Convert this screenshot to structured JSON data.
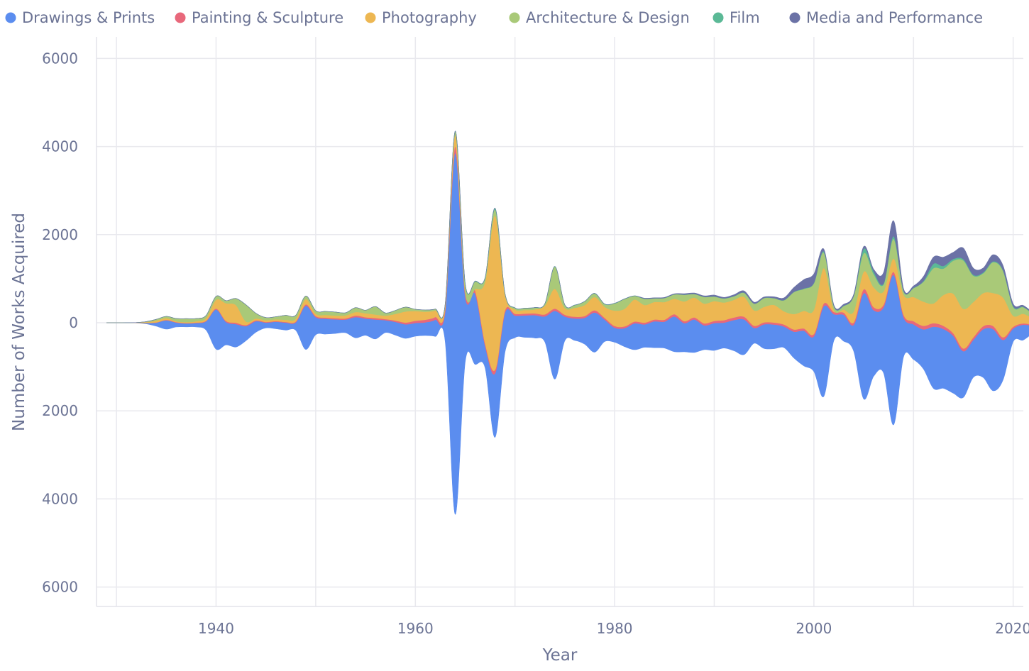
{
  "chart_data": {
    "type": "area",
    "subtype": "streamgraph",
    "xlabel": "Year",
    "ylabel": "Number of Works Acquired",
    "xlim": [
      1928,
      2022
    ],
    "ylim": [
      -6400,
      6400
    ],
    "x_ticks": [
      1940,
      1960,
      1980,
      2000,
      2020
    ],
    "x_tick_labels": [
      "1940",
      "1960",
      "1980",
      "2000",
      "2020"
    ],
    "y_ticks": [
      6000,
      4000,
      2000,
      0,
      -2000,
      -4000,
      -6000
    ],
    "y_tick_labels": [
      "6000",
      "4000",
      "2000",
      "0",
      "2000",
      "4000",
      "6000"
    ],
    "grid": true,
    "legend_position": "top",
    "x": [
      1929,
      1930,
      1931,
      1932,
      1933,
      1934,
      1935,
      1936,
      1937,
      1938,
      1939,
      1940,
      1941,
      1942,
      1943,
      1944,
      1945,
      1946,
      1947,
      1948,
      1949,
      1950,
      1951,
      1952,
      1953,
      1954,
      1955,
      1956,
      1957,
      1958,
      1959,
      1960,
      1961,
      1962,
      1963,
      1964,
      1965,
      1966,
      1967,
      1968,
      1969,
      1970,
      1971,
      1972,
      1973,
      1974,
      1975,
      1976,
      1977,
      1978,
      1979,
      1980,
      1981,
      1982,
      1983,
      1984,
      1985,
      1986,
      1987,
      1988,
      1989,
      1990,
      1991,
      1992,
      1993,
      1994,
      1995,
      1996,
      1997,
      1998,
      1999,
      2000,
      2001,
      2002,
      2003,
      2004,
      2005,
      2006,
      2007,
      2008,
      2009,
      2010,
      2011,
      2012,
      2013,
      2014,
      2015,
      2016,
      2017,
      2018,
      2019,
      2020,
      2021,
      2022
    ],
    "series": [
      {
        "name": "Drawings & Prints",
        "color": "#5b8def",
        "values": [
          0,
          1,
          2,
          5,
          20,
          80,
          200,
          100,
          80,
          90,
          200,
          900,
          520,
          520,
          330,
          250,
          120,
          160,
          170,
          180,
          990,
          400,
          350,
          320,
          300,
          470,
          380,
          440,
          280,
          300,
          320,
          300,
          300,
          380,
          700,
          8200,
          1500,
          1600,
          500,
          1450,
          900,
          500,
          500,
          520,
          580,
          1550,
          550,
          500,
          600,
          900,
          500,
          330,
          420,
          600,
          520,
          600,
          600,
          800,
          650,
          750,
          550,
          620,
          580,
          700,
          800,
          350,
          550,
          550,
          480,
          600,
          800,
          800,
          2050,
          600,
          600,
          600,
          2400,
          1500,
          1500,
          3400,
          900,
          800,
          900,
          1400,
          1350,
          1300,
          1050,
          850,
          1100,
          1400,
          900,
          300,
          350,
          150
        ]
      },
      {
        "name": "Painting & Sculpture",
        "color": "#e8687b",
        "values": [
          0,
          0,
          0,
          0,
          2,
          5,
          10,
          10,
          8,
          10,
          12,
          20,
          25,
          30,
          25,
          20,
          15,
          15,
          15,
          20,
          30,
          25,
          25,
          25,
          25,
          35,
          30,
          35,
          25,
          30,
          40,
          50,
          60,
          60,
          70,
          150,
          80,
          80,
          60,
          80,
          50,
          40,
          40,
          40,
          45,
          50,
          40,
          40,
          40,
          50,
          40,
          40,
          40,
          40,
          40,
          40,
          45,
          50,
          45,
          45,
          45,
          50,
          55,
          60,
          60,
          50,
          45,
          45,
          45,
          50,
          50,
          55,
          60,
          50,
          50,
          55,
          90,
          70,
          60,
          70,
          60,
          70,
          80,
          80,
          70,
          60,
          60,
          60,
          70,
          70,
          60,
          40,
          30,
          20
        ]
      },
      {
        "name": "Photography",
        "color": "#edb752",
        "values": [
          0,
          0,
          0,
          5,
          20,
          40,
          40,
          20,
          20,
          30,
          60,
          200,
          400,
          400,
          80,
          40,
          40,
          40,
          50,
          60,
          120,
          50,
          60,
          60,
          70,
          80,
          90,
          80,
          80,
          150,
          250,
          220,
          180,
          150,
          80,
          260,
          30,
          30,
          1400,
          3500,
          350,
          100,
          80,
          90,
          200,
          450,
          150,
          200,
          250,
          300,
          250,
          350,
          400,
          500,
          400,
          400,
          400,
          350,
          450,
          450,
          450,
          450,
          400,
          400,
          450,
          350,
          350,
          400,
          300,
          350,
          400,
          550,
          800,
          50,
          70,
          250,
          400,
          450,
          300,
          300,
          450,
          550,
          550,
          450,
          700,
          900,
          900,
          800,
          750,
          750,
          900,
          250,
          220,
          150
        ]
      },
      {
        "name": "Architecture & Design",
        "color": "#a9c978",
        "values": [
          0,
          0,
          0,
          0,
          10,
          30,
          40,
          60,
          80,
          60,
          60,
          80,
          60,
          150,
          380,
          120,
          60,
          60,
          100,
          80,
          70,
          70,
          80,
          80,
          60,
          100,
          70,
          180,
          60,
          80,
          100,
          40,
          40,
          30,
          20,
          80,
          170,
          170,
          80,
          140,
          30,
          30,
          40,
          40,
          40,
          500,
          70,
          60,
          80,
          80,
          60,
          160,
          220,
          80,
          140,
          80,
          90,
          100,
          150,
          80,
          150,
          100,
          90,
          80,
          90,
          150,
          200,
          150,
          250,
          500,
          500,
          600,
          350,
          80,
          80,
          350,
          420,
          300,
          160,
          450,
          80,
          200,
          450,
          800,
          600,
          750,
          1100,
          600,
          450,
          700,
          600,
          200,
          150,
          100
        ]
      },
      {
        "name": "Film",
        "color": "#5bb996",
        "values": [
          0,
          0,
          0,
          0,
          0,
          0,
          0,
          0,
          0,
          0,
          0,
          0,
          0,
          0,
          0,
          0,
          0,
          0,
          0,
          0,
          0,
          0,
          0,
          0,
          0,
          0,
          0,
          0,
          0,
          0,
          0,
          0,
          0,
          0,
          0,
          10,
          10,
          10,
          10,
          30,
          5,
          5,
          5,
          5,
          5,
          10,
          5,
          5,
          5,
          5,
          5,
          5,
          5,
          5,
          5,
          5,
          5,
          5,
          5,
          5,
          5,
          5,
          5,
          5,
          5,
          5,
          5,
          5,
          5,
          5,
          10,
          10,
          30,
          10,
          10,
          10,
          100,
          60,
          20,
          60,
          10,
          10,
          20,
          100,
          60,
          40,
          30,
          20,
          20,
          20,
          20,
          20,
          10,
          10
        ]
      },
      {
        "name": "Media and Performance",
        "color": "#6b72a6",
        "values": [
          0,
          0,
          0,
          0,
          0,
          0,
          0,
          0,
          0,
          0,
          0,
          0,
          0,
          0,
          0,
          0,
          0,
          0,
          0,
          0,
          0,
          0,
          0,
          0,
          0,
          0,
          0,
          0,
          0,
          0,
          0,
          0,
          0,
          0,
          0,
          0,
          0,
          0,
          0,
          0,
          0,
          0,
          0,
          0,
          0,
          0,
          0,
          0,
          0,
          0,
          0,
          0,
          0,
          0,
          10,
          10,
          10,
          10,
          20,
          20,
          20,
          30,
          20,
          30,
          40,
          30,
          20,
          30,
          50,
          100,
          200,
          200,
          50,
          20,
          30,
          30,
          50,
          50,
          250,
          350,
          50,
          40,
          100,
          150,
          200,
          150,
          250,
          150,
          100,
          150,
          100,
          50,
          30,
          20
        ]
      }
    ]
  }
}
